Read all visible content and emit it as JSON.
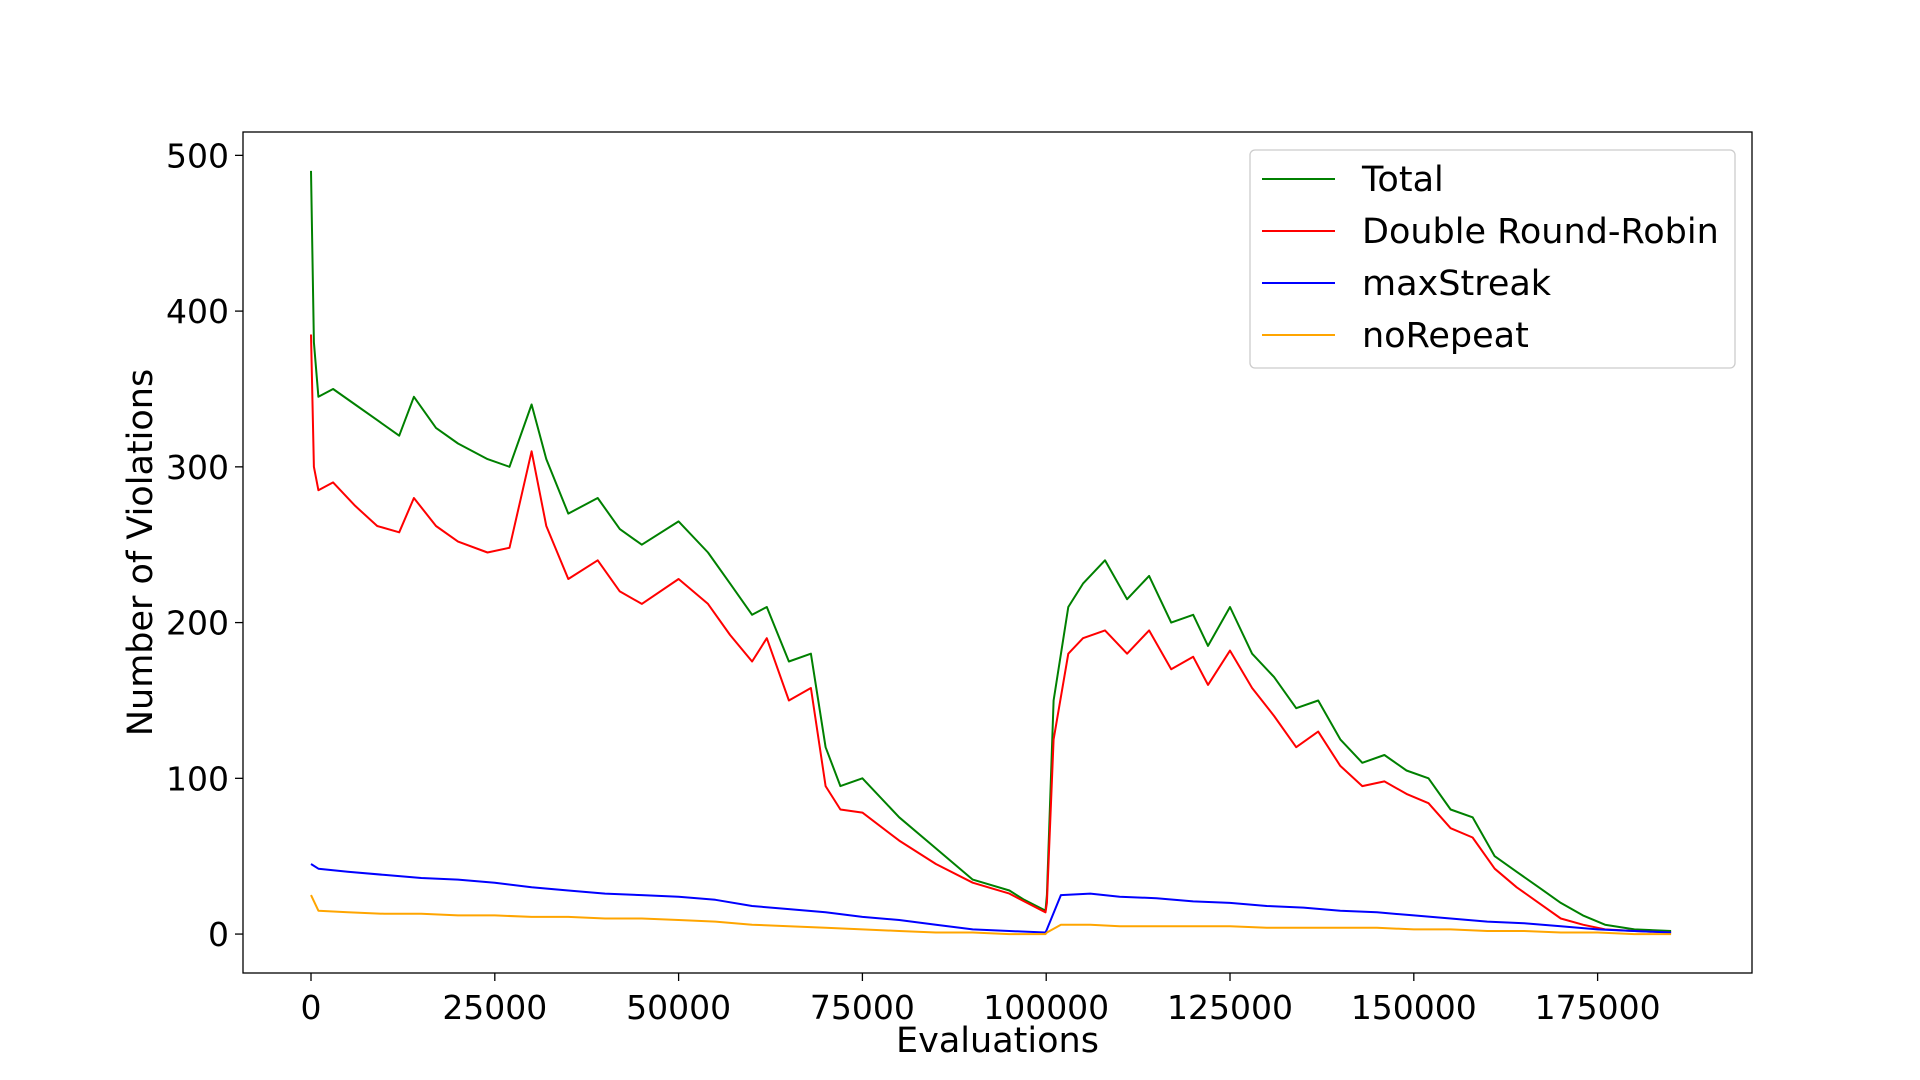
{
  "chart_data": {
    "type": "line",
    "title": "",
    "xlabel": "Evaluations",
    "ylabel": "Number of Violations",
    "xlim": [
      -9250,
      196000
    ],
    "ylim": [
      -25,
      515
    ],
    "xticks": [
      0,
      25000,
      50000,
      75000,
      100000,
      125000,
      150000,
      175000
    ],
    "xtick_labels": [
      "0",
      "25000",
      "50000",
      "75000",
      "100000",
      "125000",
      "150000",
      "175000"
    ],
    "yticks": [
      0,
      100,
      200,
      300,
      400,
      500
    ],
    "ytick_labels": [
      "0",
      "100",
      "200",
      "300",
      "400",
      "500"
    ],
    "grid": false,
    "legend_position": "top-right",
    "series": [
      {
        "name": "Total",
        "color": "#008000",
        "x": [
          0,
          400,
          1000,
          3000,
          6000,
          9000,
          12000,
          14000,
          17000,
          20000,
          24000,
          27000,
          30000,
          32000,
          35000,
          39000,
          42000,
          45000,
          50000,
          54000,
          57000,
          60000,
          62000,
          65000,
          68000,
          70000,
          72000,
          75000,
          80000,
          85000,
          90000,
          95000,
          97000,
          99900,
          100100,
          101000,
          103000,
          105000,
          108000,
          111000,
          114000,
          117000,
          120000,
          122000,
          125000,
          128000,
          131000,
          134000,
          137000,
          140000,
          143000,
          146000,
          149000,
          152000,
          155000,
          158000,
          161000,
          164000,
          167000,
          170000,
          173000,
          176000,
          180000,
          185000
        ],
        "y": [
          490,
          380,
          345,
          350,
          340,
          330,
          320,
          345,
          325,
          315,
          305,
          300,
          340,
          305,
          270,
          280,
          260,
          250,
          265,
          245,
          225,
          205,
          210,
          175,
          180,
          120,
          95,
          100,
          75,
          55,
          35,
          28,
          22,
          15,
          25,
          150,
          210,
          225,
          240,
          215,
          230,
          200,
          205,
          185,
          210,
          180,
          165,
          145,
          150,
          125,
          110,
          115,
          105,
          100,
          80,
          75,
          50,
          40,
          30,
          20,
          12,
          6,
          3,
          2
        ]
      },
      {
        "name": "Double Round-Robin",
        "color": "#ff0000",
        "x": [
          0,
          400,
          1000,
          3000,
          6000,
          9000,
          12000,
          14000,
          17000,
          20000,
          24000,
          27000,
          30000,
          32000,
          35000,
          39000,
          42000,
          45000,
          50000,
          54000,
          57000,
          60000,
          62000,
          65000,
          68000,
          70000,
          72000,
          75000,
          80000,
          85000,
          90000,
          95000,
          97000,
          99900,
          100100,
          101000,
          103000,
          105000,
          108000,
          111000,
          114000,
          117000,
          120000,
          122000,
          125000,
          128000,
          131000,
          134000,
          137000,
          140000,
          143000,
          146000,
          149000,
          152000,
          155000,
          158000,
          161000,
          164000,
          167000,
          170000,
          173000,
          176000,
          180000,
          185000
        ],
        "y": [
          385,
          300,
          285,
          290,
          275,
          262,
          258,
          280,
          262,
          252,
          245,
          248,
          310,
          262,
          228,
          240,
          220,
          212,
          228,
          212,
          192,
          175,
          190,
          150,
          158,
          95,
          80,
          78,
          60,
          45,
          33,
          26,
          21,
          14,
          20,
          125,
          180,
          190,
          195,
          180,
          195,
          170,
          178,
          160,
          182,
          158,
          140,
          120,
          130,
          108,
          95,
          98,
          90,
          84,
          68,
          62,
          42,
          30,
          20,
          10,
          6,
          3,
          2,
          1
        ]
      },
      {
        "name": "maxStreak",
        "color": "#0000ff",
        "x": [
          0,
          1000,
          5000,
          10000,
          15000,
          20000,
          25000,
          30000,
          35000,
          40000,
          45000,
          50000,
          55000,
          60000,
          65000,
          70000,
          75000,
          80000,
          85000,
          90000,
          95000,
          99900,
          100100,
          102000,
          106000,
          110000,
          115000,
          120000,
          125000,
          130000,
          135000,
          140000,
          145000,
          150000,
          155000,
          160000,
          165000,
          170000,
          175000,
          180000,
          185000
        ],
        "y": [
          45,
          42,
          40,
          38,
          36,
          35,
          33,
          30,
          28,
          26,
          25,
          24,
          22,
          18,
          16,
          14,
          11,
          9,
          6,
          3,
          2,
          1,
          3,
          25,
          26,
          24,
          23,
          21,
          20,
          18,
          17,
          15,
          14,
          12,
          10,
          8,
          7,
          5,
          3,
          2,
          1
        ]
      },
      {
        "name": "noRepeat",
        "color": "#ffa500",
        "x": [
          0,
          1000,
          5000,
          10000,
          15000,
          20000,
          25000,
          30000,
          35000,
          40000,
          45000,
          50000,
          55000,
          60000,
          65000,
          70000,
          75000,
          80000,
          85000,
          90000,
          95000,
          99900,
          100100,
          102000,
          106000,
          110000,
          115000,
          120000,
          125000,
          130000,
          135000,
          140000,
          145000,
          150000,
          155000,
          160000,
          165000,
          170000,
          175000,
          180000,
          185000
        ],
        "y": [
          25,
          15,
          14,
          13,
          13,
          12,
          12,
          11,
          11,
          10,
          10,
          9,
          8,
          6,
          5,
          4,
          3,
          2,
          1,
          1,
          0,
          0,
          1,
          6,
          6,
          5,
          5,
          5,
          5,
          4,
          4,
          4,
          4,
          3,
          3,
          2,
          2,
          1,
          1,
          0,
          0
        ]
      }
    ]
  }
}
